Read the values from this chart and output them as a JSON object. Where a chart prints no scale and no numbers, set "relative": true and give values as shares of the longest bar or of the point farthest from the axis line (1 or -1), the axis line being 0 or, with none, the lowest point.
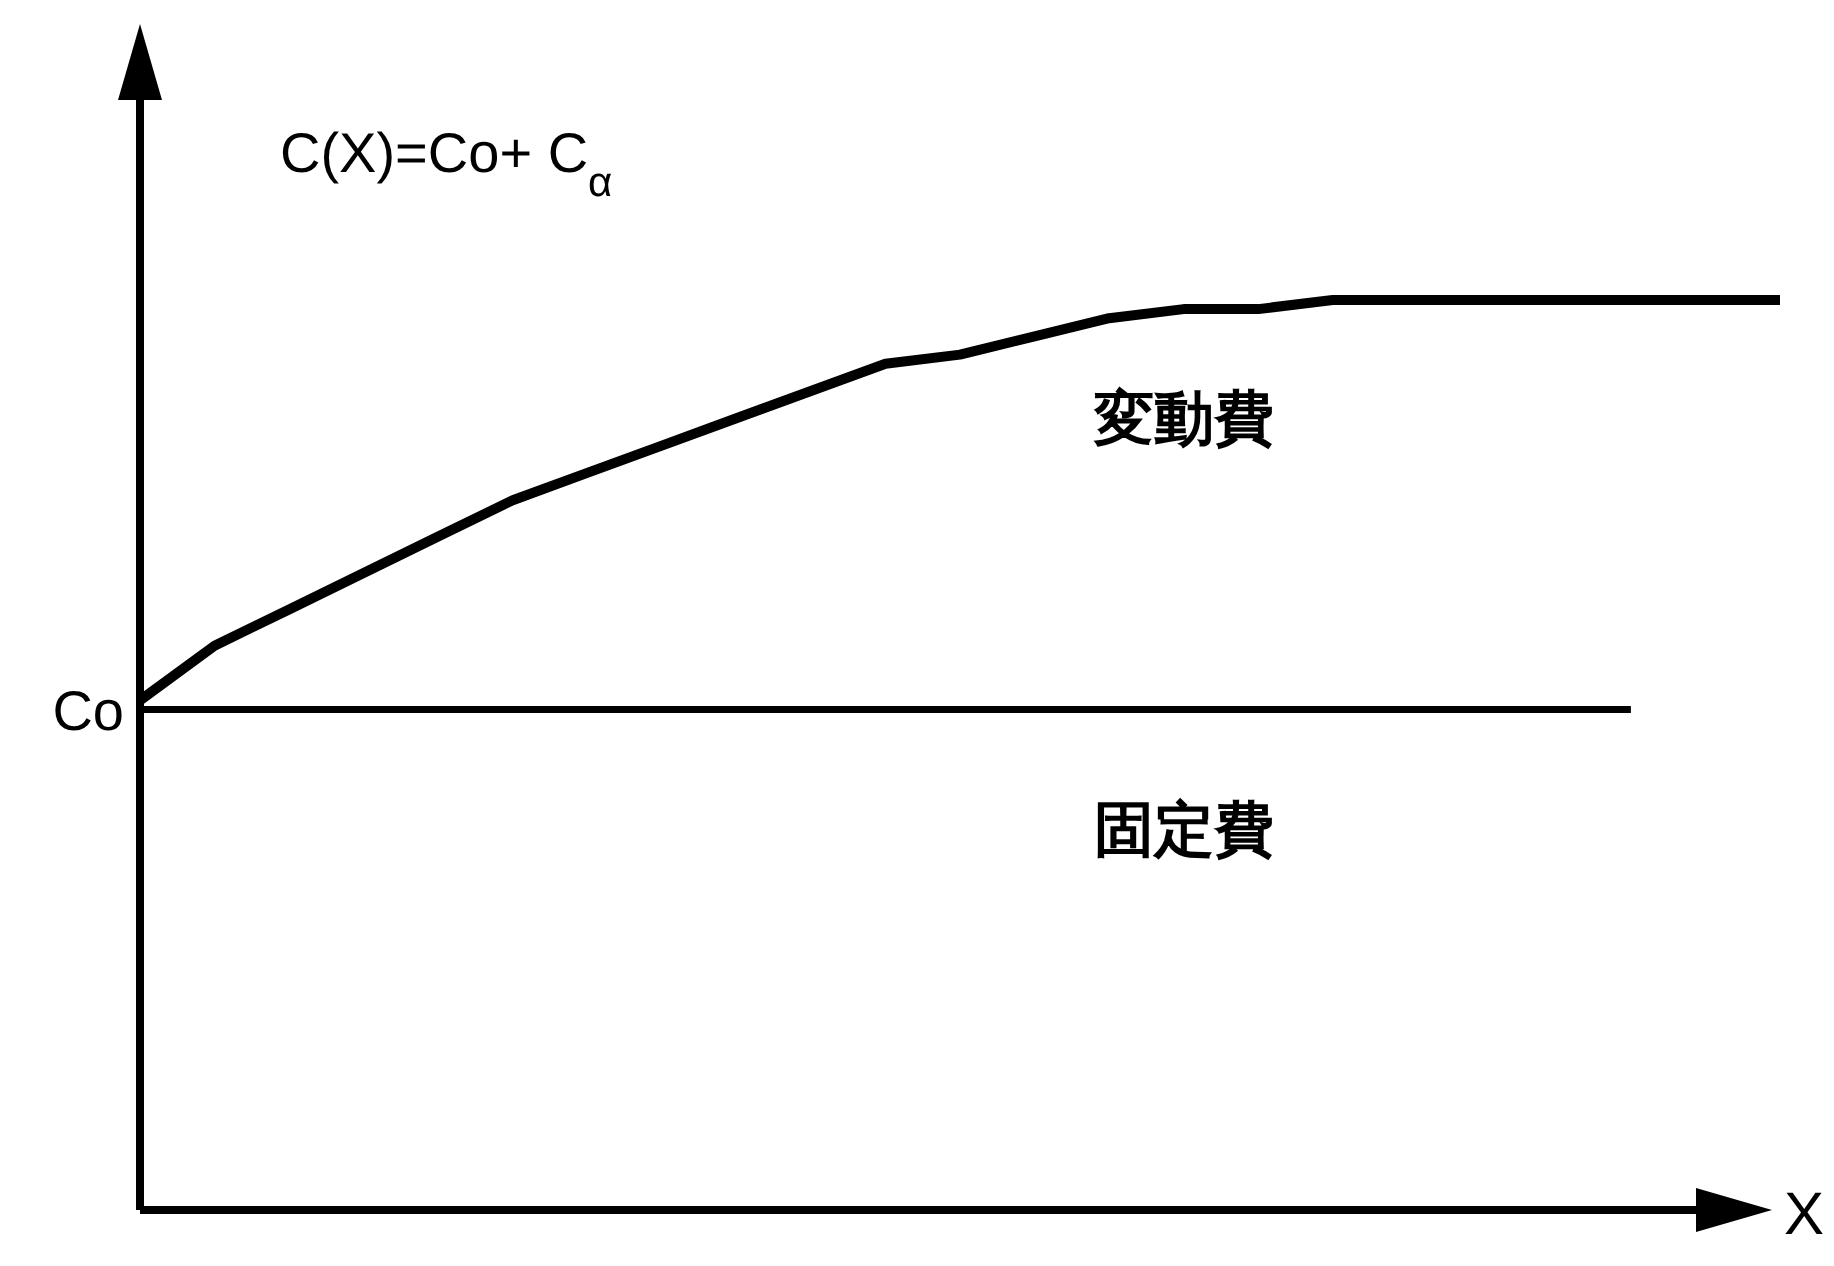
{
  "chart_data": {
    "type": "line",
    "relative": true,
    "xlabel": "X",
    "categories": [
      null,
      null,
      null,
      null,
      null,
      null,
      null,
      null,
      null,
      null,
      null,
      null,
      null,
      null,
      null,
      null,
      null,
      null,
      null,
      null,
      null,
      null,
      null
    ],
    "series": [
      {
        "name": "変動費",
        "color": "#000000",
        "values": [
          0.56,
          0.62,
          0.66,
          0.7,
          0.74,
          0.78,
          0.81,
          0.84,
          0.87,
          0.9,
          0.93,
          0.94,
          0.96,
          0.98,
          0.99,
          0.99,
          1,
          1,
          1,
          1,
          1,
          1,
          1
        ]
      },
      {
        "name": "固定費",
        "color": "#000000",
        "values": [
          0.55,
          0.55,
          0.55,
          0.55,
          0.55,
          0.55,
          0.55,
          0.55,
          0.55,
          0.55,
          0.55,
          0.55,
          0.55,
          0.55,
          0.55,
          0.55,
          0.55,
          0.55,
          0.55,
          0.55,
          0.55,
          null,
          null
        ]
      }
    ],
    "annotations": [
      "C(X)=Co+ C$_{α}$",
      "Co"
    ],
    "marker": "none",
    "line_style": "solid"
  }
}
